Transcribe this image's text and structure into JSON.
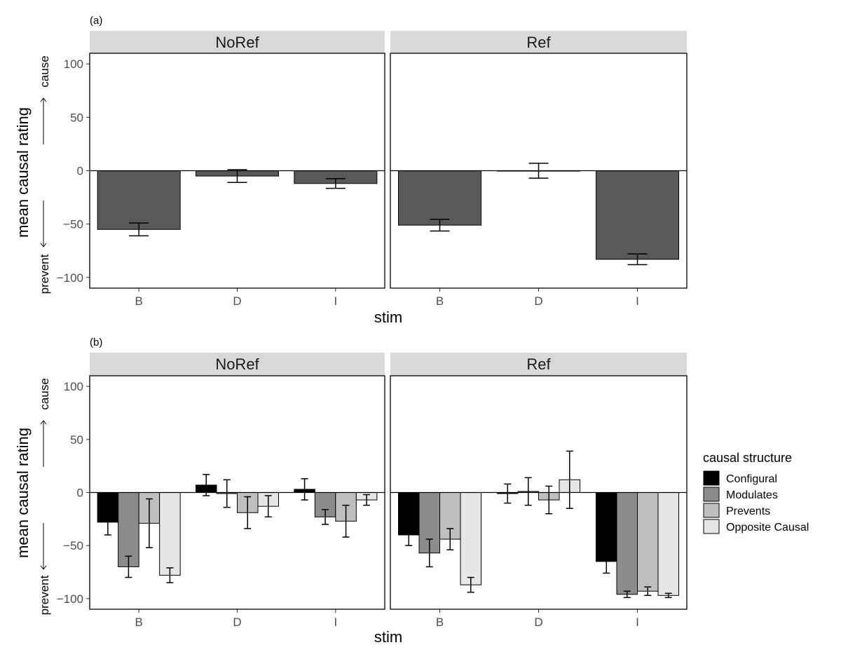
{
  "chart_data": [
    {
      "tag": "(a)",
      "type": "bar",
      "facets": [
        "NoRef",
        "Ref"
      ],
      "categories": [
        "B",
        "D",
        "I"
      ],
      "xlabel": "stim",
      "ylabel": "mean causal rating",
      "ylabel_top": "cause",
      "ylabel_bottom": "prevent",
      "ylim": [
        -110,
        110
      ],
      "yticks": [
        100,
        50,
        0,
        -50,
        -100
      ],
      "ytick_labels": [
        "100",
        "50",
        "0",
        "−50",
        "−100"
      ],
      "series": [
        {
          "name": "mean",
          "color": "#595959",
          "values": {
            "NoRef": [
              -55,
              -5,
              -12
            ],
            "Ref": [
              -51,
              0,
              -83
            ]
          },
          "errors": {
            "NoRef": [
              6,
              6,
              4.5
            ],
            "Ref": [
              5.5,
              7,
              5
            ]
          }
        }
      ]
    },
    {
      "tag": "(b)",
      "type": "bar",
      "facets": [
        "NoRef",
        "Ref"
      ],
      "categories": [
        "B",
        "D",
        "I"
      ],
      "xlabel": "stim",
      "ylabel": "mean causal rating",
      "ylabel_top": "cause",
      "ylabel_bottom": "prevent",
      "ylim": [
        -110,
        110
      ],
      "yticks": [
        100,
        50,
        0,
        -50,
        -100
      ],
      "ytick_labels": [
        "100",
        "50",
        "0",
        "−50",
        "−100"
      ],
      "legend": {
        "title": "causal structure",
        "position": "right"
      },
      "series": [
        {
          "name": "Configural",
          "color": "#000000",
          "values": {
            "NoRef": [
              -28,
              7,
              3
            ],
            "Ref": [
              -40,
              -1,
              -65
            ]
          },
          "errors": {
            "NoRef": [
              12,
              10,
              10
            ],
            "Ref": [
              10,
              9,
              11
            ]
          }
        },
        {
          "name": "Modulates",
          "color": "#8c8c8c",
          "values": {
            "NoRef": [
              -70,
              -1,
              -23
            ],
            "Ref": [
              -57,
              1,
              -96
            ]
          },
          "errors": {
            "NoRef": [
              10,
              13,
              7
            ],
            "Ref": [
              13,
              13,
              3
            ]
          }
        },
        {
          "name": "Prevents",
          "color": "#bfbfbf",
          "values": {
            "NoRef": [
              -29,
              -19,
              -27
            ],
            "Ref": [
              -44,
              -7,
              -93
            ]
          },
          "errors": {
            "NoRef": [
              23,
              15,
              15
            ],
            "Ref": [
              10,
              13,
              4
            ]
          }
        },
        {
          "name": "Opposite Causal",
          "color": "#e6e6e6",
          "values": {
            "NoRef": [
              -78,
              -13,
              -7
            ],
            "Ref": [
              -87,
              12,
              -97
            ]
          },
          "errors": {
            "NoRef": [
              7,
              10,
              5
            ],
            "Ref": [
              7,
              27,
              2
            ]
          }
        }
      ]
    }
  ]
}
